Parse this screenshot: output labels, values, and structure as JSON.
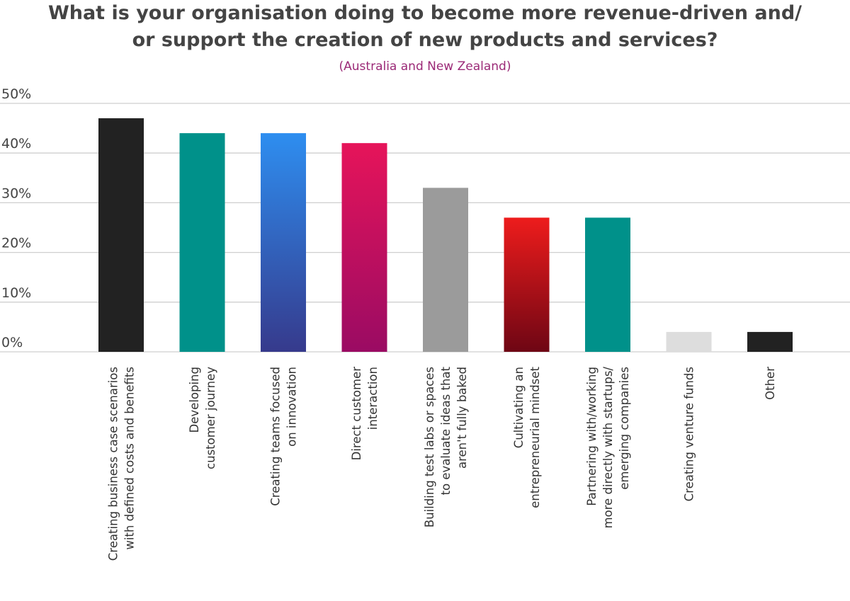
{
  "chart_data": {
    "type": "bar",
    "title_lines": [
      "What is your organisation doing to become more revenue-driven and/",
      "or support the creation of new products and services?"
    ],
    "subtitle": "(Australia and New Zealand)",
    "ylim": [
      0,
      50
    ],
    "yticks": [
      0,
      10,
      20,
      30,
      40,
      50
    ],
    "ytick_labels": [
      "0%",
      "10%",
      "20%",
      "30%",
      "40%",
      "50%"
    ],
    "grid": true,
    "categories": [
      [
        "Creating business case scenarios",
        "with defined costs and benefits"
      ],
      [
        "Developing",
        "customer journey"
      ],
      [
        "Creating teams focused",
        "on innovation"
      ],
      [
        "Direct customer",
        "interaction"
      ],
      [
        "Building test labs or spaces",
        "to evaluate ideas that",
        "aren't fully baked"
      ],
      [
        "Cultivating an",
        "entrepreneurial mindset"
      ],
      [
        "Partnering with/working",
        "more directly with startups/",
        "emerging companies"
      ],
      [
        "Creating venture funds"
      ],
      [
        "Other"
      ]
    ],
    "values": [
      47,
      44,
      44,
      42,
      33,
      27,
      27,
      4,
      4
    ],
    "colors": [
      [
        "#222222",
        "#222222"
      ],
      [
        "#00918a",
        "#00918a"
      ],
      [
        "#2e8ef0",
        "#363a8c"
      ],
      [
        "#e6145a",
        "#9a0b63"
      ],
      [
        "#9b9b9b",
        "#9b9b9b"
      ],
      [
        "#ee1c1c",
        "#6e0614"
      ],
      [
        "#00918a",
        "#00918a"
      ],
      [
        "#dddddd",
        "#dddddd"
      ],
      [
        "#222222",
        "#222222"
      ]
    ]
  }
}
